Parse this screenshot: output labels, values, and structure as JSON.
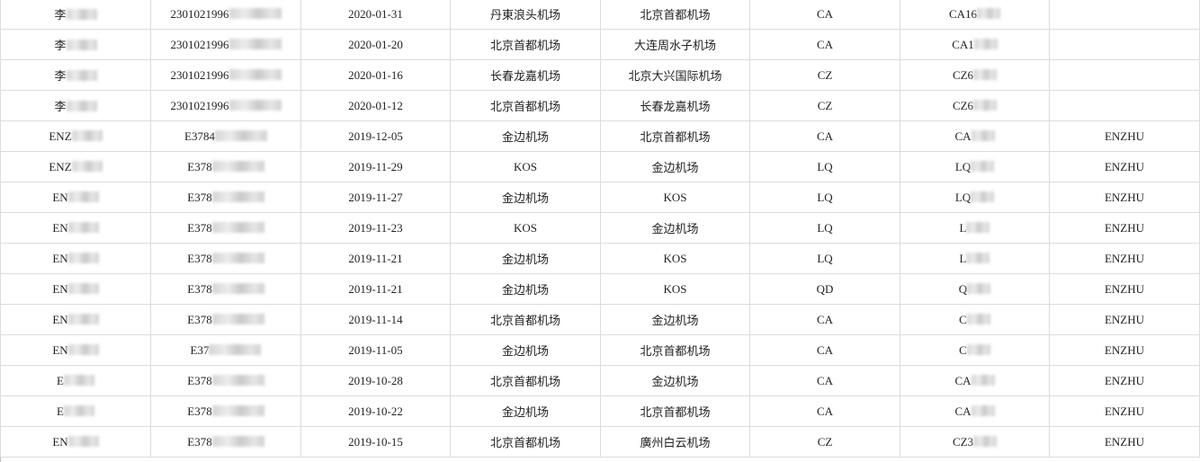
{
  "rows": [
    [
      "李",
      "2301021996",
      "2020-01-31",
      "丹東浪头机场",
      "北京首都机场",
      "CA",
      "CA16",
      ""
    ],
    [
      "李",
      "2301021996",
      "2020-01-20",
      "北京首都机场",
      "大连周水子机场",
      "CA",
      "CA1",
      ""
    ],
    [
      "李",
      "2301021996",
      "2020-01-16",
      "长春龙嘉机场",
      "北京大兴国际机场",
      "CZ",
      "CZ6",
      ""
    ],
    [
      "李",
      "2301021996",
      "2020-01-12",
      "北京首都机场",
      "长春龙嘉机场",
      "CZ",
      "CZ6",
      ""
    ],
    [
      "ENZ",
      "E3784",
      "2019-12-05",
      "金边机场",
      "北京首都机场",
      "CA",
      "CA",
      "ENZHU"
    ],
    [
      "ENZ",
      "E378",
      "2019-11-29",
      "KOS",
      "金边机场",
      "LQ",
      "LQ",
      "ENZHU"
    ],
    [
      "EN",
      "E378",
      "2019-11-27",
      "金边机场",
      "KOS",
      "LQ",
      "LQ",
      "ENZHU"
    ],
    [
      "EN",
      "E378",
      "2019-11-23",
      "KOS",
      "金边机场",
      "LQ",
      "L",
      "ENZHU"
    ],
    [
      "EN",
      "E378",
      "2019-11-21",
      "金边机场",
      "KOS",
      "LQ",
      "L",
      "ENZHU"
    ],
    [
      "EN",
      "E378",
      "2019-11-21",
      "金边机场",
      "KOS",
      "QD",
      "Q",
      "ENZHU"
    ],
    [
      "EN",
      "E378",
      "2019-11-14",
      "北京首都机场",
      "金边机场",
      "CA",
      "C",
      "ENZHU"
    ],
    [
      "EN",
      "E37",
      "2019-11-05",
      "金边机场",
      "北京首都机场",
      "CA",
      "C",
      "ENZHU"
    ],
    [
      "E",
      "E378",
      "2019-10-28",
      "北京首都机场",
      "金边机场",
      "CA",
      "CA",
      "ENZHU"
    ],
    [
      "E",
      "E378",
      "2019-10-22",
      "金边机场",
      "北京首都机场",
      "CA",
      "CA",
      "ENZHU"
    ],
    [
      "EN",
      "E378",
      "2019-10-15",
      "北京首都机场",
      "廣州白云机场",
      "CZ",
      "CZ3",
      "ENZHU"
    ]
  ],
  "redacted_columns": [
    0,
    1,
    6
  ]
}
